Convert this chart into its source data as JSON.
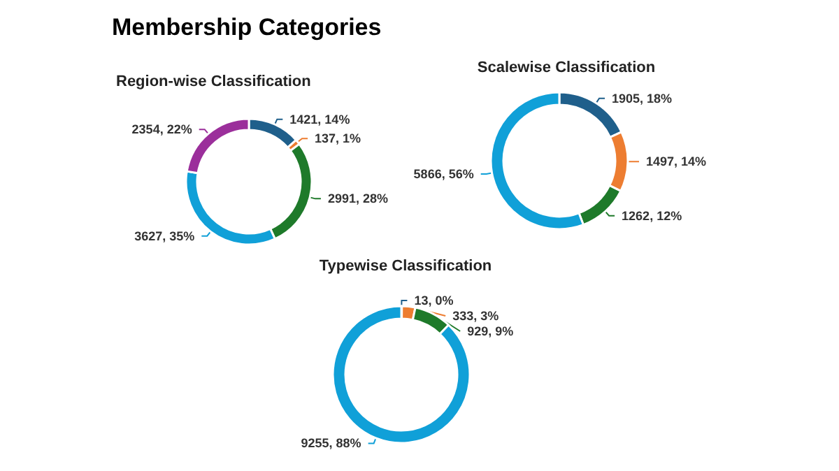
{
  "chart_data": [
    {
      "type": "donut",
      "title": "Region-wise Classification",
      "annotations": [
        "Membership Categories"
      ],
      "categories": [
        null,
        null,
        null,
        null,
        null
      ],
      "values": [
        1421,
        137,
        2991,
        3627,
        2354
      ],
      "colors": [
        "#1f5f8b",
        "#ed7d31",
        "#1e7a2a",
        "#10a0d8",
        "#9b2f9b"
      ],
      "value_labels": [
        "1421, 14%",
        "137, 1%",
        "2991, 28%",
        "3627, 35%",
        "2354, 22%"
      ]
    },
    {
      "type": "donut",
      "title": "Scalewise Classification",
      "categories": [
        null,
        null,
        null,
        null
      ],
      "values": [
        1905,
        1497,
        1262,
        5866
      ],
      "colors": [
        "#1f5f8b",
        "#ed7d31",
        "#1e7a2a",
        "#10a0d8"
      ],
      "value_labels": [
        "1905, 18%",
        "1497, 14%",
        "1262, 12%",
        "5866, 56%"
      ]
    },
    {
      "type": "donut",
      "title": "Typewise Classification",
      "categories": [
        null,
        null,
        null,
        null
      ],
      "values": [
        13,
        333,
        929,
        9255
      ],
      "colors": [
        "#1f5f8b",
        "#ed7d31",
        "#1e7a2a",
        "#10a0d8"
      ],
      "value_labels": [
        "13, 0%",
        "333, 3%",
        "929, 9%",
        "9255, 88%"
      ]
    }
  ]
}
